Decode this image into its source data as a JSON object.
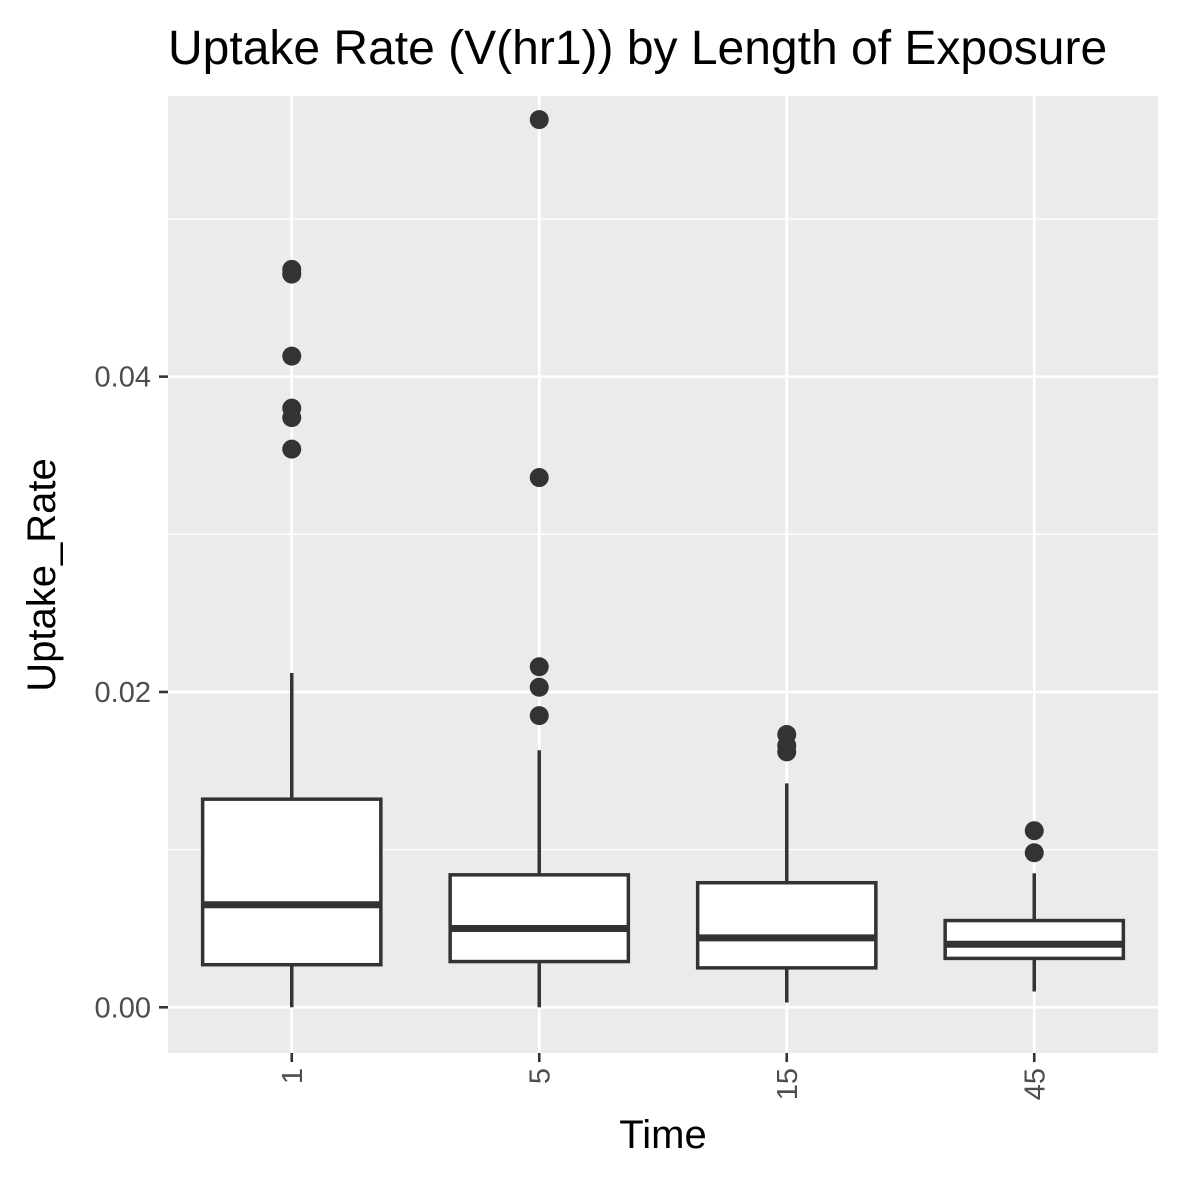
{
  "chart_data": {
    "type": "box",
    "title": "Uptake Rate (V(hr1)) by Length of Exposure",
    "xlabel": "Time",
    "ylabel": "Uptake_Rate",
    "categories": [
      "1",
      "5",
      "15",
      "45"
    ],
    "ylim": [
      -0.0029,
      0.0578
    ],
    "y_ticks": [
      0.0,
      0.02,
      0.04
    ],
    "y_tick_labels": [
      "0.00",
      "0.02",
      "0.04"
    ],
    "x_tick_rotation": "vertical",
    "grid": true,
    "legend": "none",
    "boxes": [
      {
        "category": "1",
        "whisker_low": 0.0,
        "q1": 0.0027,
        "median": 0.0065,
        "q3": 0.0132,
        "whisker_high": 0.0212,
        "outliers": [
          0.0468,
          0.0465,
          0.0413,
          0.038,
          0.0374,
          0.0354
        ]
      },
      {
        "category": "5",
        "whisker_low": 0.0,
        "q1": 0.0029,
        "median": 0.005,
        "q3": 0.0084,
        "whisker_high": 0.0163,
        "outliers": [
          0.0563,
          0.0336,
          0.0216,
          0.0203,
          0.0185
        ]
      },
      {
        "category": "15",
        "whisker_low": 0.0003,
        "q1": 0.0025,
        "median": 0.0044,
        "q3": 0.0079,
        "whisker_high": 0.0142,
        "outliers": [
          0.0173,
          0.0166,
          0.0162
        ]
      },
      {
        "category": "45",
        "whisker_low": 0.001,
        "q1": 0.0031,
        "median": 0.004,
        "q3": 0.0055,
        "whisker_high": 0.0085,
        "outliers": [
          0.0112,
          0.0098
        ]
      }
    ],
    "colors": {
      "panel_background": "#ebebeb",
      "grid": "#ffffff",
      "box_fill": "#ffffff",
      "box_line": "#333333",
      "outlier": "#333333",
      "tick_text": "#4d4d4d",
      "tick_mark": "#333333",
      "title_text": "#000000"
    }
  }
}
